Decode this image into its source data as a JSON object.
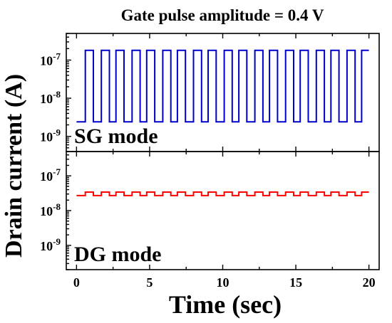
{
  "chart_data": [
    {
      "type": "line",
      "title": "Gate pulse amplitude = 0.4 V",
      "ylabel": "Drain current (A)",
      "xlabel": "",
      "annotation": "SG mode",
      "yscale": "log",
      "xlim": [
        -0.7,
        20.7
      ],
      "ylim": [
        4e-10,
        5e-07
      ],
      "yticks": [
        1e-09,
        1e-08,
        1e-07
      ],
      "ytick_labels": [
        {
          "base": "10",
          "exp": "-9"
        },
        {
          "base": "10",
          "exp": "-8"
        },
        {
          "base": "10",
          "exp": "-7"
        }
      ],
      "show_xtick_labels": false,
      "series": [
        {
          "color": "#0000cc",
          "signal": {
            "baseline": 2.4e-09,
            "pulse": 1.8e-07,
            "start": 0.0,
            "end": 20.0,
            "pulse_starts": [
              0.6,
              1.7,
              2.7,
              3.8,
              4.8,
              5.9,
              6.9,
              8.0,
              9.0,
              10.1,
              11.1,
              12.2,
              13.2,
              14.3,
              15.3,
              16.4,
              17.4,
              18.5,
              19.5
            ],
            "pulse_width": 0.55,
            "end_level": 1.8e-07
          }
        }
      ],
      "grid": false
    },
    {
      "type": "line",
      "title": "",
      "ylabel": "",
      "xlabel": "Time (sec)",
      "annotation": "DG mode",
      "yscale": "log",
      "xlim": [
        -0.7,
        20.7
      ],
      "ylim": [
        2e-10,
        5e-07
      ],
      "yticks": [
        1e-09,
        1e-08,
        1e-07
      ],
      "ytick_labels": [
        {
          "base": "10",
          "exp": "-9"
        },
        {
          "base": "10",
          "exp": "-8"
        },
        {
          "base": "10",
          "exp": "-7"
        }
      ],
      "xticks": [
        0,
        5,
        10,
        15,
        20
      ],
      "xtick_labels": [
        "0",
        "5",
        "10",
        "15",
        "20"
      ],
      "show_xtick_labels": true,
      "series": [
        {
          "color": "#ff0000",
          "signal": {
            "baseline": 2.7e-08,
            "pulse": 3.4e-08,
            "start": 0.0,
            "end": 20.0,
            "pulse_starts": [
              0.6,
              1.7,
              2.7,
              3.8,
              4.8,
              5.9,
              6.9,
              8.0,
              9.0,
              10.1,
              11.1,
              12.2,
              13.2,
              14.3,
              15.3,
              16.4,
              17.4,
              18.5,
              19.5
            ],
            "pulse_width": 0.55,
            "end_level": 3.4e-08
          }
        }
      ],
      "grid": false
    }
  ]
}
